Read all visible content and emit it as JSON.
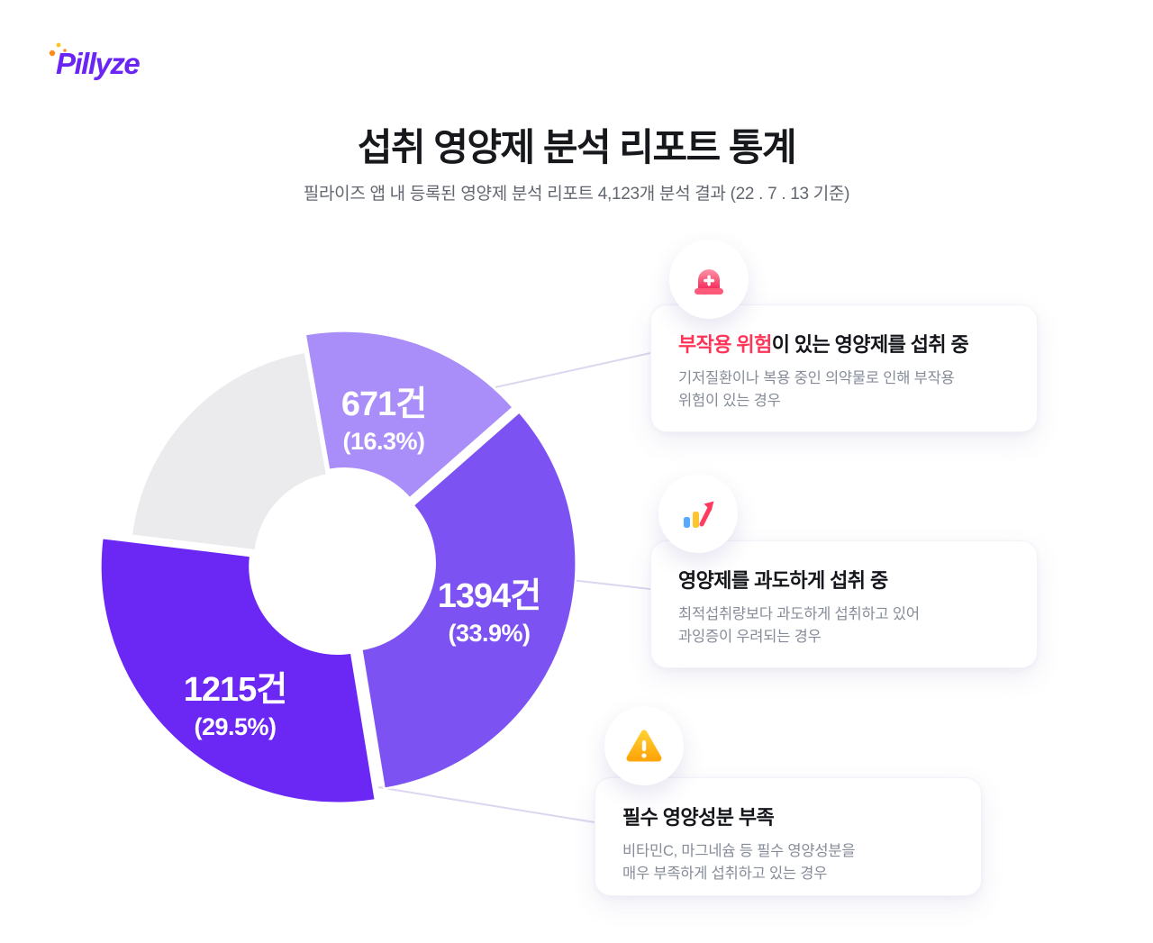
{
  "logo": {
    "text": "Pillyze"
  },
  "header": {
    "title": "섭취 영양제 분석 리포트 통계",
    "subtitle": "필라이즈 앱 내 등록된 영양제 분석 리포트 4,123개 분석 결과 (22 . 7 . 13 기준)"
  },
  "colors": {
    "brand_purple": "#6A25F4",
    "highlight_red": "#FF3558",
    "warning_yellow": "#FFBE18"
  },
  "chart_data": {
    "type": "pie",
    "title": "섭취 영양제 분석 리포트 통계",
    "total_reports_label": "4,123개",
    "unit": "건",
    "layout": {
      "start_angle_deg": -10,
      "inner_radius": 97
    },
    "segments": [
      {
        "name": "부작용 위험이 있는 영양제를 섭취 중",
        "count": 671,
        "pct": 16.3,
        "count_label": "671건",
        "pct_label": "(16.3%)",
        "color": "#A98DF8",
        "radius": 250,
        "explode": 6
      },
      {
        "name": "영양제를 과도하게 섭취 중",
        "count": 1394,
        "pct": 33.9,
        "count_label": "1394건",
        "pct_label": "(33.9%)",
        "color": "#7C53F2",
        "radius": 254,
        "explode": 6
      },
      {
        "name": "필수 영양성분 부족",
        "count": 1215,
        "pct": 29.5,
        "count_label": "1215건",
        "pct_label": "(29.5%)",
        "color": "#6B28F5",
        "radius": 263,
        "explode": 8
      },
      {
        "name": "",
        "count": null,
        "pct": 20.3,
        "count_label": "",
        "pct_label": "",
        "color": "#EBEBEE",
        "radius": 236,
        "explode": 0
      }
    ]
  },
  "cards": [
    {
      "icon": "siren-icon",
      "title_highlight": "부작용 위험",
      "title_rest": "이 있는 영양제를 섭취 중",
      "desc_line1": "기저질환이나 복용 중인 의약물로 인해 부작용",
      "desc_line2": "위험이 있는 경우"
    },
    {
      "icon": "bar-chart-icon",
      "title": "영양제를 과도하게 섭취 중",
      "desc_line1": "최적섭취량보다 과도하게 섭취하고 있어",
      "desc_line2": "과잉증이 우려되는 경우"
    },
    {
      "icon": "warning-icon",
      "title": "필수 영양성분 부족",
      "desc_line1": "비타민C, 마그네슘 등 필수 영양성분을",
      "desc_line2": "매우 부족하게 섭취하고 있는 경우"
    }
  ]
}
